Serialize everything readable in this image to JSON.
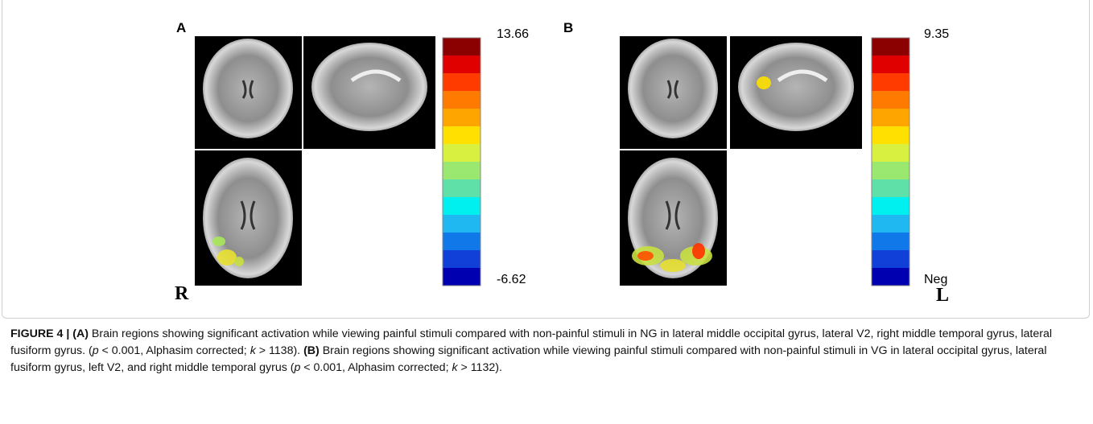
{
  "figure": {
    "panels": [
      {
        "label": "A",
        "colorbar_max": "13.66",
        "colorbar_min": "-6.62",
        "side": "R"
      },
      {
        "label": "B",
        "colorbar_max": "9.35",
        "colorbar_min": "Neg",
        "side": "L"
      }
    ]
  },
  "caption": {
    "segments": [
      "FIGURE 4 | (A)",
      " Brain regions showing significant activation while viewing painful stimuli compared with non-painful stimuli in NG in lateral middle occipital gyrus, lateral V2, right middle temporal gyrus, lateral fusiform gyrus. (",
      "p",
      " < 0.001, Alphasim corrected; ",
      "k",
      " > 1138). ",
      "(B)",
      " Brain regions showing significant activation while viewing painful stimuli compared with non-painful stimuli in VG in lateral occipital gyrus, lateral fusiform gyrus, left V2, and right middle temporal gyrus (",
      "p",
      " < 0.001, Alphasim corrected; ",
      "k",
      " > 1132)."
    ]
  }
}
